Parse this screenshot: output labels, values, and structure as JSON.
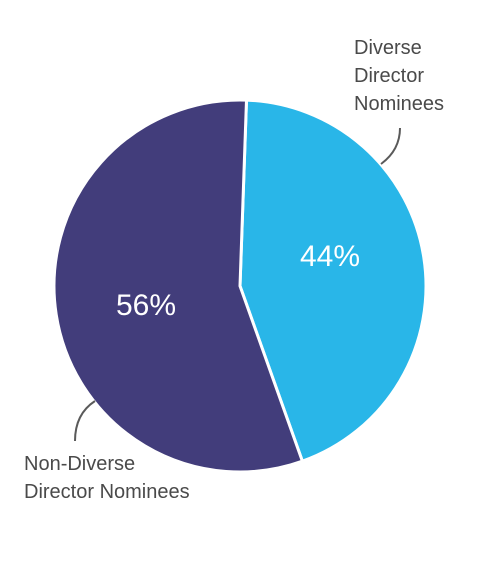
{
  "chart_data": {
    "type": "pie",
    "title": "",
    "slices": [
      {
        "name": "Diverse Director Nominees",
        "label_lines": [
          "Diverse",
          "Director",
          "Nominees"
        ],
        "value": 44,
        "value_label": "44%",
        "color": "#29b6e8"
      },
      {
        "name": "Non-Diverse Director Nominees",
        "label_lines": [
          "Non-Diverse",
          "Director Nominees"
        ],
        "value": 56,
        "value_label": "56%",
        "color": "#423d7b"
      }
    ],
    "start_angle_deg": 2,
    "direction": "clockwise",
    "legend": "none"
  }
}
